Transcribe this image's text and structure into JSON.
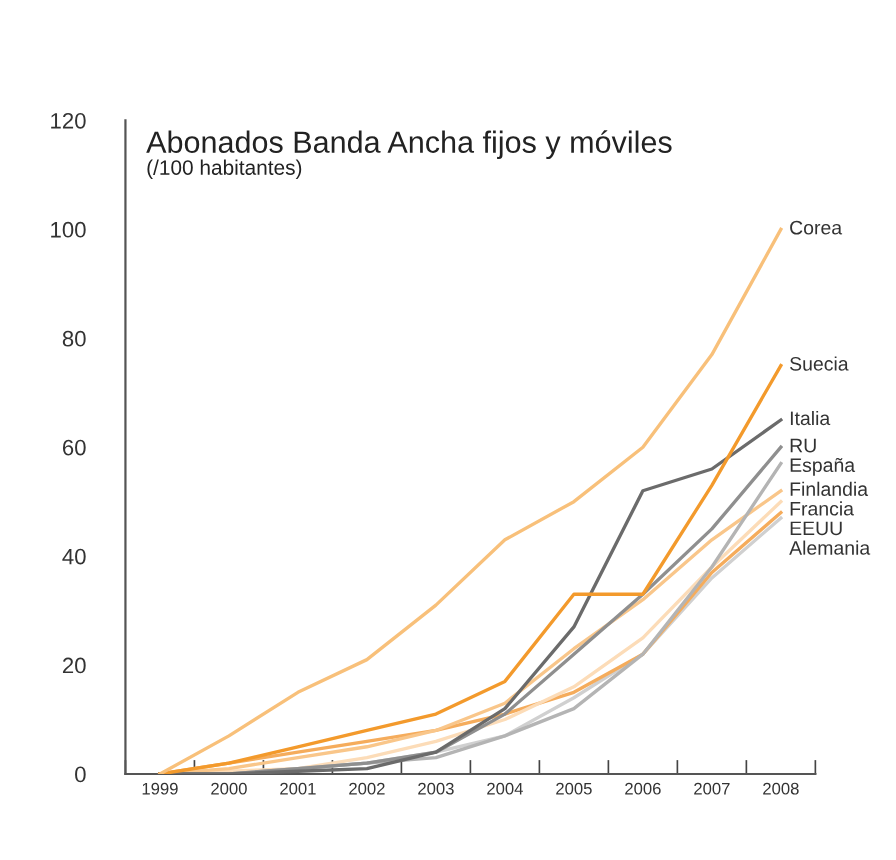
{
  "chart_data": {
    "type": "line",
    "title": "Abonados Banda Ancha fijos y móviles",
    "subtitle": "(/100 habitantes)",
    "categories": [
      "1999",
      "2000",
      "2001",
      "2002",
      "2003",
      "2004",
      "2005",
      "2006",
      "2007",
      "2008"
    ],
    "series": [
      {
        "name": "Corea",
        "color": "#f8c07a",
        "values": [
          0,
          7,
          15,
          21,
          31,
          43,
          50,
          60,
          77,
          100
        ]
      },
      {
        "name": "Suecia",
        "color": "#f39a2c",
        "values": [
          0,
          2,
          5,
          8,
          11,
          17,
          33,
          33,
          53,
          75
        ]
      },
      {
        "name": "Italia",
        "color": "#6b6b6b",
        "values": [
          0,
          0,
          0.5,
          1,
          4,
          12,
          27,
          52,
          56,
          65
        ]
      },
      {
        "name": "RU",
        "color": "#8f8f8f",
        "values": [
          0,
          0,
          1,
          2,
          4,
          11,
          22,
          33,
          45,
          60
        ]
      },
      {
        "name": "España",
        "color": "#b4b4b4",
        "values": [
          0,
          0,
          1,
          2,
          3,
          7,
          12,
          22,
          38,
          57
        ]
      },
      {
        "name": "Finlandia",
        "color": "#f9c68a",
        "values": [
          0,
          1,
          3,
          5,
          8,
          13,
          23,
          32,
          43,
          52
        ]
      },
      {
        "name": "Francia",
        "color": "#fcdcb8",
        "values": [
          0,
          0.5,
          1,
          3,
          6,
          10,
          16,
          25,
          38,
          50
        ]
      },
      {
        "name": "EEUU",
        "color": "#f5ac5c",
        "values": [
          0,
          2,
          4,
          6,
          8,
          11,
          15,
          22,
          37,
          48
        ]
      },
      {
        "name": "Alemania",
        "color": "#d0d0d0",
        "values": [
          0,
          0,
          1,
          2,
          4,
          7,
          14,
          22,
          36,
          47
        ]
      }
    ],
    "ylim": [
      0,
      120
    ],
    "yticks": [
      0,
      20,
      40,
      60,
      80,
      100,
      120
    ],
    "grid": false,
    "legend": false,
    "marker": "none",
    "line_style": "solid"
  }
}
